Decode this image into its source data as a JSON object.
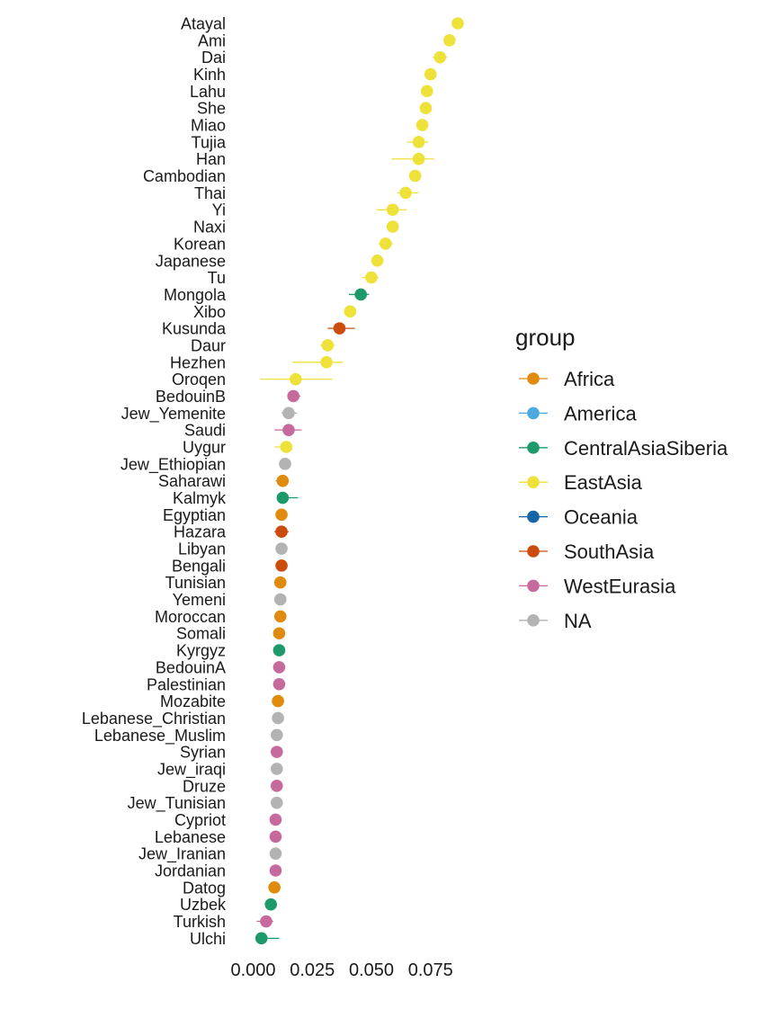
{
  "chart_data": {
    "type": "scatter",
    "orientation": "horizontal-dot-errorbar",
    "title": "",
    "xlabel": "",
    "ylabel": "",
    "xlim": [
      -0.002,
      0.09
    ],
    "xticks": [
      0.0,
      0.025,
      0.05,
      0.075
    ],
    "xtick_labels": [
      "0.000",
      "0.025",
      "0.050",
      "0.075"
    ],
    "grid": false,
    "legend": {
      "title": "group",
      "position": "right",
      "entries": [
        {
          "key": "Africa",
          "label": "Africa",
          "color": "#E08B0E"
        },
        {
          "key": "America",
          "label": "America",
          "color": "#4EA8E0"
        },
        {
          "key": "CentralAsiaSiberia",
          "label": "CentralAsiaSiberia",
          "color": "#1E9A6A"
        },
        {
          "key": "EastAsia",
          "label": "EastAsia",
          "color": "#EEE13A"
        },
        {
          "key": "Oceania",
          "label": "Oceania",
          "color": "#1466A8"
        },
        {
          "key": "SouthAsia",
          "label": "SouthAsia",
          "color": "#CC4C0D"
        },
        {
          "key": "WestEurasia",
          "label": "WestEurasia",
          "color": "#C66A9E"
        },
        {
          "key": "NA",
          "label": "NA",
          "color": "#B3B3B3"
        }
      ]
    },
    "points": [
      {
        "label": "Atayal",
        "value": 0.0865,
        "lo": 0.0865,
        "hi": 0.0865,
        "group": "EastAsia"
      },
      {
        "label": "Ami",
        "value": 0.083,
        "lo": 0.083,
        "hi": 0.083,
        "group": "EastAsia"
      },
      {
        "label": "Dai",
        "value": 0.079,
        "lo": 0.076,
        "hi": 0.082,
        "group": "EastAsia"
      },
      {
        "label": "Kinh",
        "value": 0.075,
        "lo": 0.073,
        "hi": 0.077,
        "group": "EastAsia"
      },
      {
        "label": "Lahu",
        "value": 0.0735,
        "lo": 0.071,
        "hi": 0.076,
        "group": "EastAsia"
      },
      {
        "label": "She",
        "value": 0.073,
        "lo": 0.0705,
        "hi": 0.0755,
        "group": "EastAsia"
      },
      {
        "label": "Miao",
        "value": 0.0715,
        "lo": 0.0695,
        "hi": 0.0735,
        "group": "EastAsia"
      },
      {
        "label": "Tujia",
        "value": 0.07,
        "lo": 0.065,
        "hi": 0.074,
        "group": "EastAsia"
      },
      {
        "label": "Han",
        "value": 0.07,
        "lo": 0.0585,
        "hi": 0.0765,
        "group": "EastAsia"
      },
      {
        "label": "Cambodian",
        "value": 0.0685,
        "lo": 0.0685,
        "hi": 0.0685,
        "group": "EastAsia"
      },
      {
        "label": "Thai",
        "value": 0.0645,
        "lo": 0.061,
        "hi": 0.07,
        "group": "EastAsia"
      },
      {
        "label": "Yi",
        "value": 0.059,
        "lo": 0.052,
        "hi": 0.065,
        "group": "EastAsia"
      },
      {
        "label": "Naxi",
        "value": 0.059,
        "lo": 0.059,
        "hi": 0.059,
        "group": "EastAsia"
      },
      {
        "label": "Korean",
        "value": 0.056,
        "lo": 0.053,
        "hi": 0.059,
        "group": "EastAsia"
      },
      {
        "label": "Japanese",
        "value": 0.0525,
        "lo": 0.0505,
        "hi": 0.0545,
        "group": "EastAsia"
      },
      {
        "label": "Tu",
        "value": 0.05,
        "lo": 0.046,
        "hi": 0.053,
        "group": "EastAsia"
      },
      {
        "label": "Mongola",
        "value": 0.0455,
        "lo": 0.0405,
        "hi": 0.049,
        "group": "CentralAsiaSiberia"
      },
      {
        "label": "Xibo",
        "value": 0.041,
        "lo": 0.041,
        "hi": 0.041,
        "group": "EastAsia"
      },
      {
        "label": "Kusunda",
        "value": 0.0365,
        "lo": 0.0315,
        "hi": 0.043,
        "group": "SouthAsia"
      },
      {
        "label": "Daur",
        "value": 0.0315,
        "lo": 0.0285,
        "hi": 0.0345,
        "group": "EastAsia"
      },
      {
        "label": "Hezhen",
        "value": 0.031,
        "lo": 0.0165,
        "hi": 0.038,
        "group": "EastAsia"
      },
      {
        "label": "Oroqen",
        "value": 0.018,
        "lo": 0.003,
        "hi": 0.0335,
        "group": "EastAsia"
      },
      {
        "label": "BedouinB",
        "value": 0.017,
        "lo": 0.0145,
        "hi": 0.02,
        "group": "WestEurasia"
      },
      {
        "label": "Jew_Yemenite",
        "value": 0.015,
        "lo": 0.012,
        "hi": 0.0185,
        "group": "NA"
      },
      {
        "label": "Saudi",
        "value": 0.015,
        "lo": 0.009,
        "hi": 0.0205,
        "group": "WestEurasia"
      },
      {
        "label": "Uygur",
        "value": 0.014,
        "lo": 0.009,
        "hi": 0.0165,
        "group": "EastAsia"
      },
      {
        "label": "Jew_Ethiopian",
        "value": 0.0135,
        "lo": 0.0135,
        "hi": 0.0135,
        "group": "NA"
      },
      {
        "label": "Saharawi",
        "value": 0.0125,
        "lo": 0.0095,
        "hi": 0.0145,
        "group": "Africa"
      },
      {
        "label": "Kalmyk",
        "value": 0.0125,
        "lo": 0.011,
        "hi": 0.019,
        "group": "CentralAsiaSiberia"
      },
      {
        "label": "Egyptian",
        "value": 0.012,
        "lo": 0.01,
        "hi": 0.014,
        "group": "Africa"
      },
      {
        "label": "Hazara",
        "value": 0.012,
        "lo": 0.009,
        "hi": 0.015,
        "group": "SouthAsia"
      },
      {
        "label": "Libyan",
        "value": 0.012,
        "lo": 0.012,
        "hi": 0.012,
        "group": "NA"
      },
      {
        "label": "Bengali",
        "value": 0.012,
        "lo": 0.012,
        "hi": 0.012,
        "group": "SouthAsia"
      },
      {
        "label": "Tunisian",
        "value": 0.0115,
        "lo": 0.0115,
        "hi": 0.0115,
        "group": "Africa"
      },
      {
        "label": "Yemeni",
        "value": 0.0115,
        "lo": 0.01,
        "hi": 0.0125,
        "group": "NA"
      },
      {
        "label": "Moroccan",
        "value": 0.0115,
        "lo": 0.0105,
        "hi": 0.0125,
        "group": "Africa"
      },
      {
        "label": "Somali",
        "value": 0.011,
        "lo": 0.011,
        "hi": 0.011,
        "group": "Africa"
      },
      {
        "label": "Kyrgyz",
        "value": 0.011,
        "lo": 0.011,
        "hi": 0.011,
        "group": "CentralAsiaSiberia"
      },
      {
        "label": "BedouinA",
        "value": 0.011,
        "lo": 0.011,
        "hi": 0.011,
        "group": "WestEurasia"
      },
      {
        "label": "Palestinian",
        "value": 0.011,
        "lo": 0.011,
        "hi": 0.011,
        "group": "WestEurasia"
      },
      {
        "label": "Mozabite",
        "value": 0.0105,
        "lo": 0.0095,
        "hi": 0.012,
        "group": "Africa"
      },
      {
        "label": "Lebanese_Christian",
        "value": 0.0105,
        "lo": 0.0105,
        "hi": 0.0105,
        "group": "NA"
      },
      {
        "label": "Lebanese_Muslim",
        "value": 0.01,
        "lo": 0.0085,
        "hi": 0.011,
        "group": "NA"
      },
      {
        "label": "Syrian",
        "value": 0.01,
        "lo": 0.008,
        "hi": 0.0115,
        "group": "WestEurasia"
      },
      {
        "label": "Jew_iraqi",
        "value": 0.01,
        "lo": 0.01,
        "hi": 0.01,
        "group": "NA"
      },
      {
        "label": "Druze",
        "value": 0.01,
        "lo": 0.0085,
        "hi": 0.011,
        "group": "WestEurasia"
      },
      {
        "label": "Jew_Tunisian",
        "value": 0.01,
        "lo": 0.009,
        "hi": 0.0125,
        "group": "NA"
      },
      {
        "label": "Cypriot",
        "value": 0.0095,
        "lo": 0.008,
        "hi": 0.0105,
        "group": "WestEurasia"
      },
      {
        "label": "Lebanese",
        "value": 0.0095,
        "lo": 0.0095,
        "hi": 0.0095,
        "group": "WestEurasia"
      },
      {
        "label": "Jew_Iranian",
        "value": 0.0095,
        "lo": 0.0085,
        "hi": 0.0105,
        "group": "NA"
      },
      {
        "label": "Jordanian",
        "value": 0.0095,
        "lo": 0.0085,
        "hi": 0.0105,
        "group": "WestEurasia"
      },
      {
        "label": "Datog",
        "value": 0.009,
        "lo": 0.0085,
        "hi": 0.0095,
        "group": "Africa"
      },
      {
        "label": "Uzbek",
        "value": 0.0075,
        "lo": 0.005,
        "hi": 0.0095,
        "group": "CentralAsiaSiberia"
      },
      {
        "label": "Turkish",
        "value": 0.0055,
        "lo": 0.0015,
        "hi": 0.0085,
        "group": "WestEurasia"
      },
      {
        "label": "Ulchi",
        "value": 0.0035,
        "lo": 0.0035,
        "hi": 0.011,
        "group": "CentralAsiaSiberia"
      }
    ]
  }
}
